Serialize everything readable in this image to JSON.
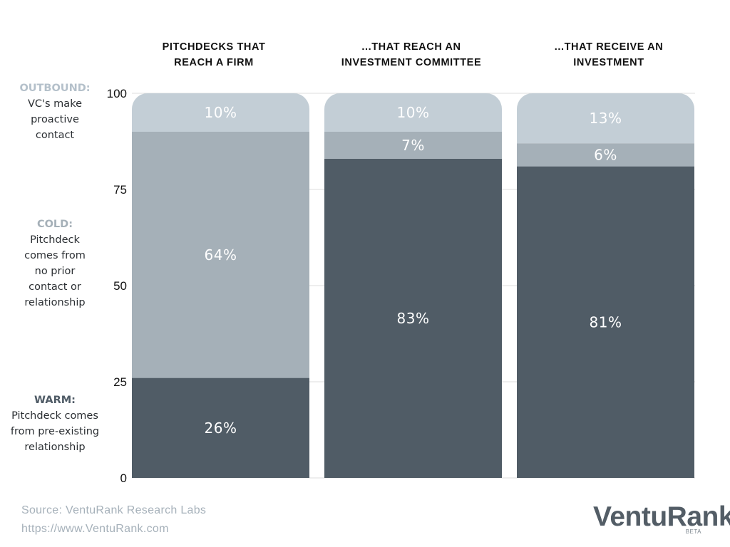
{
  "chart_data": {
    "type": "bar",
    "stacked": true,
    "categories": [
      [
        "PITCHDECKS THAT",
        "REACH A FIRM"
      ],
      [
        "...THAT REACH AN",
        "INVESTMENT COMMITTEE"
      ],
      [
        "...THAT RECEIVE AN",
        "INVESTMENT"
      ]
    ],
    "series": [
      {
        "name": "WARM",
        "color": "#505c66",
        "values": [
          26,
          83,
          81
        ],
        "labels": [
          "26%",
          "83%",
          "81%"
        ]
      },
      {
        "name": "COLD",
        "color": "#a5b0b8",
        "values": [
          64,
          7,
          6
        ],
        "labels": [
          "64%",
          "7%",
          "6%"
        ]
      },
      {
        "name": "OUTBOUND",
        "color": "#c3ced6",
        "values": [
          10,
          10,
          13
        ],
        "labels": [
          "10%",
          "10%",
          "13%"
        ]
      }
    ],
    "ylim": [
      0,
      100
    ],
    "yticks": [
      0,
      25,
      50,
      75,
      100
    ],
    "grid": true
  },
  "legend": {
    "outbound": {
      "title": "OUTBOUND:",
      "lines": [
        "VC's make",
        "proactive",
        "contact"
      ]
    },
    "cold": {
      "title": "COLD:",
      "lines": [
        "Pitchdeck",
        "comes from",
        "no prior",
        "contact or",
        "relationship"
      ]
    },
    "warm": {
      "title": "WARM:",
      "lines": [
        "Pitchdeck comes",
        "from pre-existing",
        "relationship"
      ]
    }
  },
  "footer": {
    "source": "Source: VentuRank Research Labs",
    "url": "https://www.VentuRank.com"
  },
  "logo": {
    "text": "VentuRank",
    "badge": "BETA"
  }
}
